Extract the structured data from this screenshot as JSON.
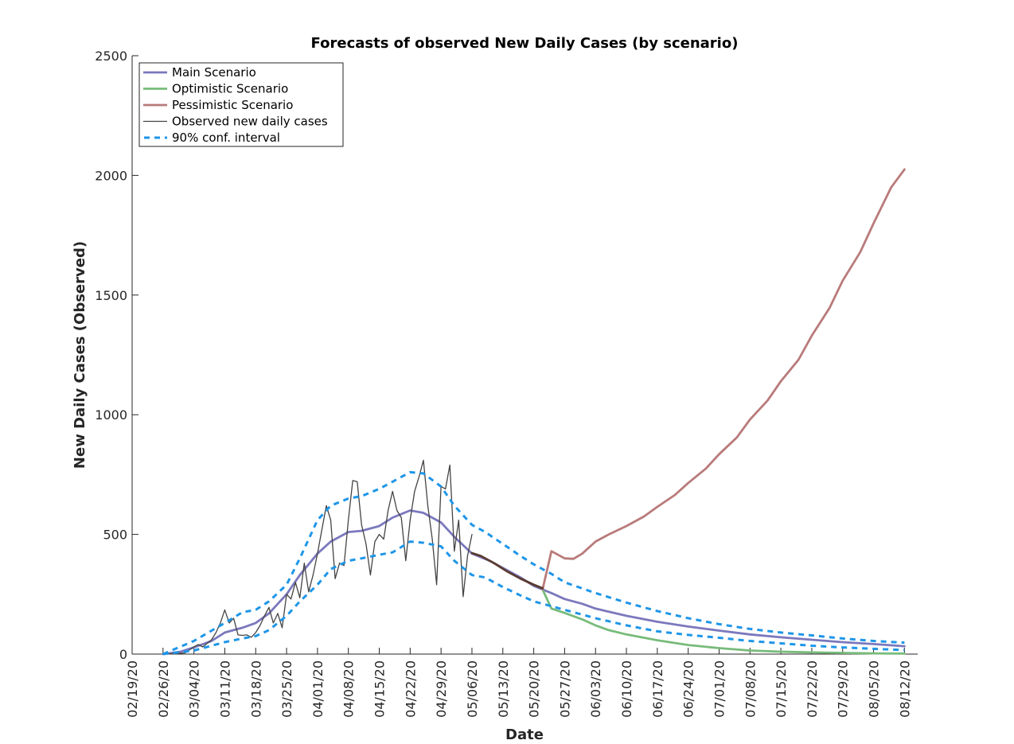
{
  "chart_data": {
    "type": "line",
    "title": "Forecasts of observed New Daily Cases (by scenario)",
    "xlabel": "Date",
    "ylabel": "New Daily Cases (Observed)",
    "ylim": [
      0,
      2500
    ],
    "yticks": [
      0,
      500,
      1000,
      1500,
      2000,
      2500
    ],
    "xlim": [
      "2020-02-19",
      "2020-08-15"
    ],
    "xticks": [
      "02/19/20",
      "02/26/20",
      "03/04/20",
      "03/11/20",
      "03/18/20",
      "03/25/20",
      "04/01/20",
      "04/08/20",
      "04/15/20",
      "04/22/20",
      "04/29/20",
      "05/06/20",
      "05/13/20",
      "05/20/20",
      "05/27/20",
      "06/03/20",
      "06/10/20",
      "06/17/20",
      "06/24/20",
      "07/01/20",
      "07/08/20",
      "07/15/20",
      "07/22/20",
      "07/29/20",
      "08/05/20",
      "08/12/20"
    ],
    "grid": false,
    "legend_position": "top-left",
    "series": [
      {
        "name": "Main Scenario",
        "color": "#7b78bd",
        "style": "solid",
        "x": [
          "2020-02-26",
          "2020-03-01",
          "2020-03-04",
          "2020-03-08",
          "2020-03-11",
          "2020-03-15",
          "2020-03-18",
          "2020-03-21",
          "2020-03-25",
          "2020-03-28",
          "2020-04-01",
          "2020-04-04",
          "2020-04-08",
          "2020-04-11",
          "2020-04-15",
          "2020-04-18",
          "2020-04-22",
          "2020-04-25",
          "2020-04-29",
          "2020-05-02",
          "2020-05-06",
          "2020-05-10",
          "2020-05-13",
          "2020-05-17",
          "2020-05-20",
          "2020-05-24",
          "2020-05-27",
          "2020-05-31",
          "2020-06-03",
          "2020-06-10",
          "2020-06-17",
          "2020-06-24",
          "2020-07-01",
          "2020-07-08",
          "2020-07-15",
          "2020-07-22",
          "2020-07-29",
          "2020-08-05",
          "2020-08-12"
        ],
        "values": [
          0,
          10,
          28,
          55,
          90,
          110,
          130,
          170,
          250,
          330,
          420,
          470,
          510,
          515,
          535,
          570,
          600,
          590,
          550,
          490,
          420,
          390,
          360,
          320,
          285,
          255,
          230,
          210,
          190,
          160,
          135,
          115,
          98,
          82,
          70,
          60,
          50,
          42,
          33
        ]
      },
      {
        "name": "Optimistic Scenario",
        "color": "#77bb7a",
        "style": "solid",
        "x": [
          "2020-05-22",
          "2020-05-24",
          "2020-05-27",
          "2020-05-31",
          "2020-06-03",
          "2020-06-06",
          "2020-06-10",
          "2020-06-17",
          "2020-06-24",
          "2020-07-01",
          "2020-07-08",
          "2020-07-15",
          "2020-07-22",
          "2020-07-29",
          "2020-08-05",
          "2020-08-12"
        ],
        "values": [
          270,
          190,
          172,
          145,
          120,
          100,
          82,
          58,
          38,
          25,
          15,
          10,
          7,
          5,
          3,
          2
        ]
      },
      {
        "name": "Pessimistic Scenario",
        "color": "#b97a7a",
        "style": "solid",
        "x": [
          "2020-05-22",
          "2020-05-24",
          "2020-05-27",
          "2020-05-29",
          "2020-05-31",
          "2020-06-03",
          "2020-06-06",
          "2020-06-10",
          "2020-06-14",
          "2020-06-17",
          "2020-06-21",
          "2020-06-24",
          "2020-06-28",
          "2020-07-01",
          "2020-07-05",
          "2020-07-08",
          "2020-07-12",
          "2020-07-15",
          "2020-07-19",
          "2020-07-22",
          "2020-07-26",
          "2020-07-29",
          "2020-08-02",
          "2020-08-05",
          "2020-08-09",
          "2020-08-12"
        ],
        "values": [
          270,
          430,
          400,
          398,
          420,
          470,
          500,
          535,
          575,
          615,
          665,
          715,
          775,
          835,
          905,
          980,
          1060,
          1140,
          1230,
          1330,
          1445,
          1560,
          1680,
          1800,
          1950,
          2025
        ]
      },
      {
        "name": "Observed new daily cases",
        "color": "#444444",
        "style": "thin",
        "x": [
          "2020-02-26",
          "2020-02-29",
          "2020-03-02",
          "2020-03-04",
          "2020-03-05",
          "2020-03-06",
          "2020-03-07",
          "2020-03-08",
          "2020-03-09",
          "2020-03-10",
          "2020-03-11",
          "2020-03-12",
          "2020-03-13",
          "2020-03-14",
          "2020-03-15",
          "2020-03-16",
          "2020-03-17",
          "2020-03-18",
          "2020-03-19",
          "2020-03-20",
          "2020-03-21",
          "2020-03-22",
          "2020-03-23",
          "2020-03-24",
          "2020-03-25",
          "2020-03-26",
          "2020-03-27",
          "2020-03-28",
          "2020-03-29",
          "2020-03-30",
          "2020-03-31",
          "2020-04-01",
          "2020-04-02",
          "2020-04-03",
          "2020-04-04",
          "2020-04-05",
          "2020-04-06",
          "2020-04-07",
          "2020-04-08",
          "2020-04-09",
          "2020-04-10",
          "2020-04-11",
          "2020-04-12",
          "2020-04-13",
          "2020-04-14",
          "2020-04-15",
          "2020-04-16",
          "2020-04-17",
          "2020-04-18",
          "2020-04-19",
          "2020-04-20",
          "2020-04-21",
          "2020-04-22",
          "2020-04-23",
          "2020-04-24",
          "2020-04-25",
          "2020-04-26",
          "2020-04-27",
          "2020-04-28",
          "2020-04-29",
          "2020-04-30",
          "2020-05-01",
          "2020-05-02",
          "2020-05-03",
          "2020-05-04",
          "2020-05-05",
          "2020-05-06"
        ],
        "values": [
          0,
          2,
          5,
          30,
          40,
          30,
          45,
          60,
          90,
          130,
          185,
          130,
          150,
          80,
          78,
          80,
          70,
          90,
          120,
          160,
          195,
          130,
          170,
          110,
          250,
          230,
          300,
          235,
          380,
          260,
          330,
          420,
          520,
          620,
          560,
          315,
          380,
          370,
          560,
          725,
          720,
          540,
          460,
          330,
          470,
          500,
          480,
          600,
          680,
          600,
          570,
          390,
          560,
          680,
          740,
          810,
          620,
          480,
          290,
          700,
          690,
          790,
          430,
          560,
          240,
          410,
          500
        ]
      },
      {
        "name": "90% conf. interval",
        "color": "#1e96e8",
        "style": "dashed",
        "x": [
          "2020-02-26",
          "2020-03-04",
          "2020-03-11",
          "2020-03-15",
          "2020-03-18",
          "2020-03-21",
          "2020-03-25",
          "2020-03-28",
          "2020-04-01",
          "2020-04-04",
          "2020-04-08",
          "2020-04-11",
          "2020-04-15",
          "2020-04-18",
          "2020-04-22",
          "2020-04-25",
          "2020-04-29",
          "2020-05-02",
          "2020-05-06",
          "2020-05-09",
          "2020-05-13",
          "2020-05-17",
          "2020-05-20",
          "2020-05-24",
          "2020-05-27",
          "2020-06-03",
          "2020-06-10",
          "2020-06-17",
          "2020-06-24",
          "2020-07-01",
          "2020-07-08",
          "2020-07-15",
          "2020-07-22",
          "2020-07-29",
          "2020-08-05",
          "2020-08-12"
        ],
        "values": [
          0,
          55,
          130,
          175,
          185,
          220,
          290,
          400,
          560,
          620,
          650,
          660,
          690,
          720,
          760,
          755,
          700,
          620,
          540,
          510,
          460,
          410,
          375,
          335,
          300,
          255,
          215,
          180,
          150,
          125,
          105,
          90,
          78,
          65,
          55,
          48
        ]
      },
      {
        "name": "",
        "color": "#1e96e8",
        "style": "dashed",
        "x": [
          "2020-02-26",
          "2020-03-04",
          "2020-03-11",
          "2020-03-15",
          "2020-03-18",
          "2020-03-21",
          "2020-03-25",
          "2020-03-28",
          "2020-04-01",
          "2020-04-04",
          "2020-04-08",
          "2020-04-11",
          "2020-04-15",
          "2020-04-18",
          "2020-04-22",
          "2020-04-25",
          "2020-04-29",
          "2020-05-02",
          "2020-05-06",
          "2020-05-09",
          "2020-05-13",
          "2020-05-17",
          "2020-05-20",
          "2020-05-24",
          "2020-05-27",
          "2020-06-03",
          "2020-06-10",
          "2020-06-17",
          "2020-06-24",
          "2020-07-01",
          "2020-07-08",
          "2020-07-15",
          "2020-07-22",
          "2020-07-29",
          "2020-08-05",
          "2020-08-12"
        ],
        "values": [
          0,
          15,
          50,
          65,
          75,
          100,
          160,
          220,
          290,
          355,
          390,
          400,
          415,
          425,
          470,
          465,
          450,
          390,
          330,
          320,
          280,
          245,
          220,
          200,
          185,
          150,
          120,
          95,
          80,
          68,
          55,
          45,
          35,
          28,
          22,
          17
        ]
      },
      {
        "name": "",
        "color": "#5a3a30",
        "style": "solid",
        "x": [
          "2020-05-06",
          "2020-05-08",
          "2020-05-11",
          "2020-05-14",
          "2020-05-17",
          "2020-05-20",
          "2020-05-22"
        ],
        "values": [
          422,
          410,
          380,
          345,
          315,
          290,
          275
        ]
      }
    ]
  }
}
